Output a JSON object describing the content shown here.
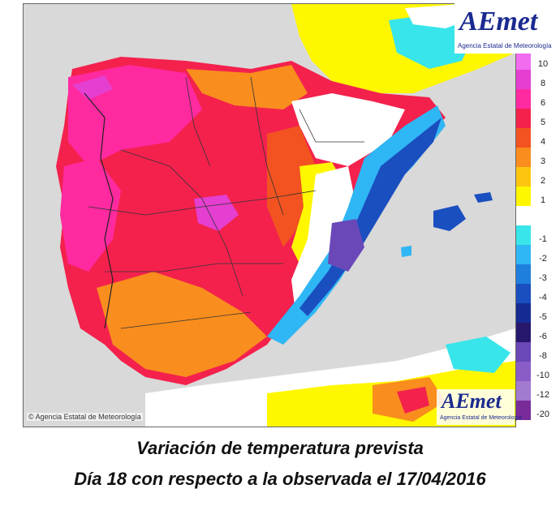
{
  "logo": {
    "wordmark": "AEmet",
    "agency_name": "Agencia Estatal de Meteorología"
  },
  "copyright": "© Agencia Estatal de Meteorología",
  "caption": {
    "line1": "Variación de temperatura prevista",
    "line2": "Día 18 con respecto a la observada el 17/04/2016"
  },
  "legend": [
    {
      "label": "10",
      "color": "#f26cf0"
    },
    {
      "label": "8",
      "color": "#e43fd1"
    },
    {
      "label": "6",
      "color": "#ff2aa0"
    },
    {
      "label": "5",
      "color": "#f4214d"
    },
    {
      "label": "4",
      "color": "#f25320"
    },
    {
      "label": "3",
      "color": "#f98d1e"
    },
    {
      "label": "2",
      "color": "#fcc60f"
    },
    {
      "label": "1",
      "color": "#fef700"
    },
    {
      "label": "",
      "color": "#ffffff"
    },
    {
      "label": "-1",
      "color": "#38e5ea"
    },
    {
      "label": "-2",
      "color": "#2fb6f4"
    },
    {
      "label": "-3",
      "color": "#1f7fdc"
    },
    {
      "label": "-4",
      "color": "#1a4fc0"
    },
    {
      "label": "-5",
      "color": "#152b93"
    },
    {
      "label": "-6",
      "color": "#27176d"
    },
    {
      "label": "-8",
      "color": "#6a48b8"
    },
    {
      "label": "-10",
      "color": "#8a5cc8"
    },
    {
      "label": "-12",
      "color": "#a27ad0"
    },
    {
      "label": "-20",
      "color": "#7a2b9a"
    }
  ]
}
